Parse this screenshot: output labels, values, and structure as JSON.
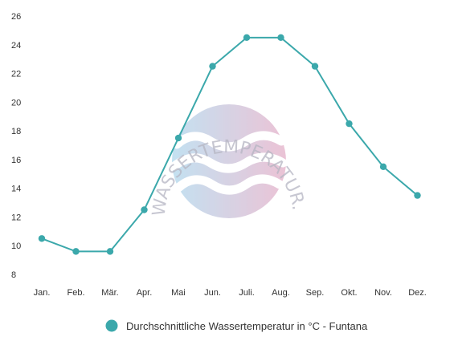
{
  "chart_data": {
    "type": "line",
    "title": "",
    "xlabel": "",
    "ylabel": "",
    "categories": [
      "Jan.",
      "Feb.",
      "Mär.",
      "Apr.",
      "Mai",
      "Jun.",
      "Juli.",
      "Aug.",
      "Sep.",
      "Okt.",
      "Nov.",
      "Dez."
    ],
    "series": [
      {
        "name": "Durchschnittliche Wassertemperatur in °C - Funtana",
        "color": "#3ba8ab",
        "values": [
          10.5,
          9.6,
          9.6,
          12.5,
          17.5,
          22.5,
          24.5,
          24.5,
          22.5,
          18.5,
          15.5,
          13.5
        ]
      }
    ],
    "ylim": [
      8,
      26
    ],
    "yticks": [
      8,
      10,
      12,
      14,
      16,
      18,
      20,
      22,
      24,
      26
    ],
    "grid": false,
    "legend_position": "bottom"
  },
  "watermark": {
    "text": "WASSERTEMPERATUR.ORG",
    "logo_colors": [
      "#b9dcef",
      "#e8b9cf"
    ]
  }
}
